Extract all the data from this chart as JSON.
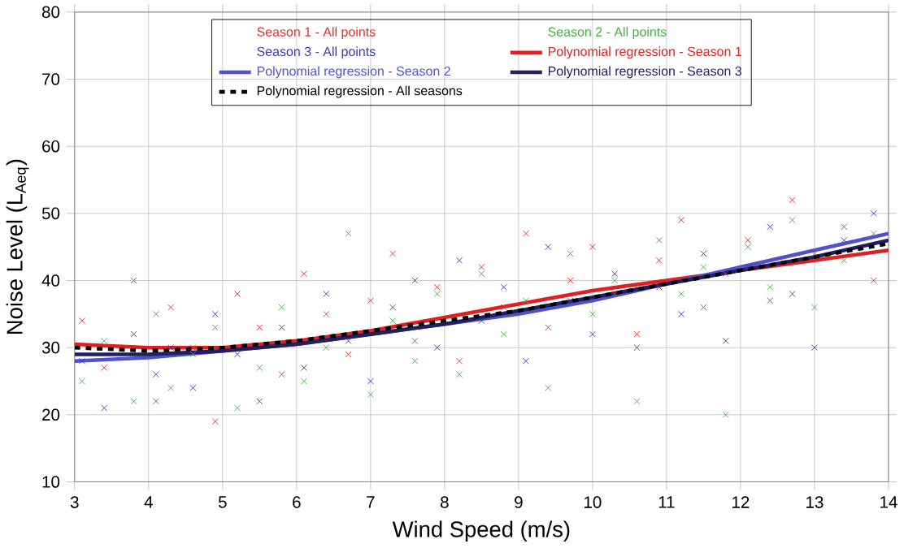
{
  "chart_data": {
    "type": "scatter",
    "xlabel": "Wind Speed (m/s)",
    "ylabel": "Noise Level (L$_{Aeq}$)",
    "xlim": [
      3,
      14
    ],
    "ylim": [
      10,
      80
    ],
    "xticks": [
      3,
      4,
      5,
      6,
      7,
      8,
      9,
      10,
      11,
      12,
      13,
      14
    ],
    "yticks": [
      10,
      20,
      30,
      40,
      50,
      60,
      70,
      80
    ],
    "grid": true,
    "legend": "top",
    "marker": "cross",
    "x": [
      3.1,
      3.4,
      3.8,
      4.1,
      4.3,
      4.6,
      4.9,
      5.2,
      5.5,
      5.8,
      6.1,
      6.4,
      6.7,
      7.0,
      7.3,
      7.6,
      7.9,
      8.2,
      8.5,
      8.8,
      9.1,
      9.4,
      9.7,
      10.0,
      10.3,
      10.6,
      10.9,
      11.2,
      11.5,
      11.8,
      12.1,
      12.4,
      12.7,
      13.0,
      13.4,
      13.8
    ],
    "series": [
      {
        "name": "Season 1 - All points",
        "color": "#e03030",
        "values": [
          34,
          27,
          40,
          22,
          36,
          30,
          19,
          38,
          33,
          26,
          41,
          35,
          29,
          37,
          44,
          31,
          39,
          28,
          42,
          36,
          47,
          33,
          40,
          45,
          38,
          32,
          43,
          49,
          36,
          41,
          46,
          37,
          52,
          44,
          48,
          40
        ]
      },
      {
        "name": "Season 2 - All points",
        "color": "#40b040",
        "values": [
          25,
          31,
          22,
          35,
          24,
          29,
          33,
          21,
          27,
          36,
          25,
          30,
          47,
          23,
          34,
          28,
          38,
          26,
          41,
          32,
          37,
          24,
          44,
          35,
          40,
          22,
          46,
          38,
          42,
          20,
          45,
          39,
          49,
          36,
          43,
          47
        ]
      },
      {
        "name": "Season 3 - All points",
        "color": "#3a3ab0",
        "values": [
          28,
          21,
          32,
          26,
          30,
          24,
          35,
          29,
          22,
          33,
          27,
          38,
          31,
          25,
          36,
          40,
          30,
          43,
          34,
          39,
          28,
          45,
          37,
          32,
          41,
          30,
          39,
          35,
          44,
          31,
          42,
          48,
          38,
          30,
          46,
          50
        ]
      },
      {
        "name": "Polynomial regression - Season 1",
        "type": "line",
        "marker": "none",
        "color": "#e02020",
        "x": [
          3,
          4,
          5,
          6,
          7,
          8,
          9,
          10,
          11,
          12,
          13,
          14
        ],
        "values": [
          30.5,
          30,
          30,
          31,
          32.5,
          34.5,
          36.5,
          38.5,
          40,
          41.5,
          43,
          44.5
        ]
      },
      {
        "name": "Polynomial regression - Season 2",
        "type": "line",
        "marker": "none",
        "color": "#5050d0",
        "x": [
          3,
          4,
          5,
          6,
          7,
          8,
          9,
          10,
          11,
          12,
          13,
          14
        ],
        "values": [
          28,
          28.5,
          29.5,
          30.5,
          32,
          33.5,
          35,
          37,
          39.5,
          42,
          44.5,
          47
        ]
      },
      {
        "name": "Polynomial regression - Season 3",
        "type": "line",
        "marker": "none",
        "color": "#202060",
        "x": [
          3,
          4,
          5,
          6,
          7,
          8,
          9,
          10,
          11,
          12,
          13,
          14
        ],
        "values": [
          29,
          29,
          29.5,
          30.5,
          32,
          33.5,
          35.5,
          37.5,
          39.5,
          41.5,
          43.5,
          46
        ]
      },
      {
        "name": "Polynomial regression - All seasons",
        "type": "line",
        "marker": "none",
        "line_style": "dashed",
        "color": "#000000",
        "x": [
          3,
          4,
          5,
          6,
          7,
          8,
          9,
          10,
          11,
          12,
          13,
          14
        ],
        "values": [
          30,
          29.5,
          30,
          31,
          32.5,
          34,
          35.5,
          37.5,
          39.5,
          41.5,
          43.5,
          45.5
        ]
      }
    ]
  }
}
